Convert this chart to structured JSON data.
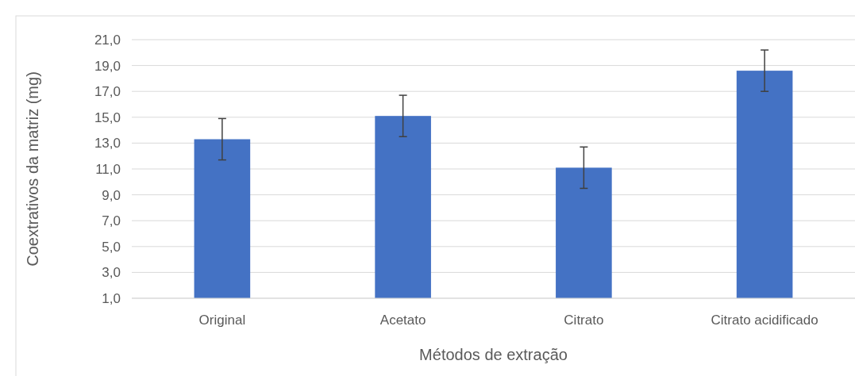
{
  "chart_data": {
    "type": "bar",
    "xlabel": "Métodos de extração",
    "ylabel": "Coextrativos da matriz (mg)",
    "categories": [
      "Original",
      "Acetato",
      "Citrato",
      "Citrato acidificado"
    ],
    "values": [
      13.3,
      15.1,
      11.1,
      18.6
    ],
    "errors": [
      1.6,
      1.6,
      1.6,
      1.6
    ],
    "color": "#4472c4",
    "ylim": [
      1,
      21
    ],
    "yticks": [
      {
        "value": 1,
        "label": "1,0"
      },
      {
        "value": 3,
        "label": "3,0"
      },
      {
        "value": 5,
        "label": "5,0"
      },
      {
        "value": 7,
        "label": "7,0"
      },
      {
        "value": 9,
        "label": "9,0"
      },
      {
        "value": 11,
        "label": "11,0"
      },
      {
        "value": 13,
        "label": "13,0"
      },
      {
        "value": 15,
        "label": "15,0"
      },
      {
        "value": 17,
        "label": "17,0"
      },
      {
        "value": 19,
        "label": "19,0"
      },
      {
        "value": 21,
        "label": "21,0"
      }
    ],
    "grid": "y"
  }
}
